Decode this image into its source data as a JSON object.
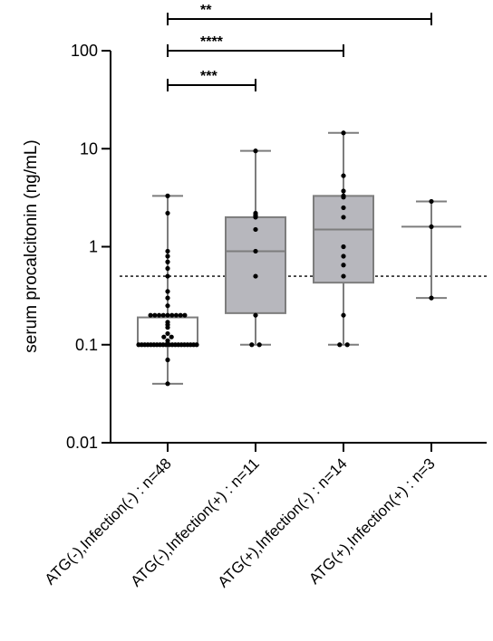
{
  "chart_data": {
    "type": "box",
    "ylabel": "serum procalcitonin (ng/mL)",
    "yscale": "log",
    "ylim": [
      0.01,
      100
    ],
    "yticks": [
      {
        "value": 0.01,
        "label": "0.01"
      },
      {
        "value": 0.1,
        "label": "0.1"
      },
      {
        "value": 1,
        "label": "1"
      },
      {
        "value": 10,
        "label": "10"
      },
      {
        "value": 100,
        "label": "100"
      }
    ],
    "reference_line": 0.5,
    "categories": [
      "ATG(-),Infection(-) : n=48",
      "ATG(-),Infection(+) : n=11",
      "ATG(+),Infection(-) : n=14",
      "ATG(+),Infection(+) : n=3"
    ],
    "boxes": [
      {
        "min": 0.04,
        "q1": 0.1,
        "median": 0.1,
        "q3": 0.19,
        "max": 3.3,
        "fill": "#ffffff"
      },
      {
        "min": 0.1,
        "q1": 0.21,
        "median": 0.9,
        "q3": 2.0,
        "max": 9.5,
        "fill": "#b7b7bd"
      },
      {
        "min": 0.1,
        "q1": 0.43,
        "median": 1.5,
        "q3": 3.3,
        "max": 14.5,
        "fill": "#b7b7bd"
      },
      {
        "min": 0.3,
        "median": 1.6,
        "max": 2.9,
        "fill": "#ffffff"
      }
    ],
    "points": [
      [
        0.04,
        0.07,
        0.1,
        0.1,
        0.1,
        0.1,
        0.1,
        0.1,
        0.1,
        0.1,
        0.1,
        0.1,
        0.1,
        0.1,
        0.1,
        0.1,
        0.1,
        0.1,
        0.1,
        0.1,
        0.1,
        0.1,
        0.11,
        0.12,
        0.12,
        0.13,
        0.15,
        0.16,
        0.17,
        0.2,
        0.2,
        0.2,
        0.2,
        0.2,
        0.2,
        0.2,
        0.2,
        0.2,
        0.25,
        0.3,
        0.35,
        0.5,
        0.6,
        0.7,
        0.8,
        0.9,
        2.2,
        3.3
      ],
      [
        0.1,
        0.1,
        0.2,
        0.5,
        0.9,
        1.5,
        2.0,
        2.1,
        2.2,
        9.5,
        2.05
      ],
      [
        0.1,
        0.1,
        0.2,
        0.5,
        0.65,
        0.8,
        1.0,
        2.0,
        2.5,
        3.3,
        3.7,
        5.3,
        14.5,
        3.2
      ],
      [
        0.3,
        1.6,
        2.9
      ]
    ],
    "significance": [
      {
        "from": 0,
        "to": 3,
        "label": "**"
      },
      {
        "from": 0,
        "to": 2,
        "label": "****"
      },
      {
        "from": 0,
        "to": 1,
        "label": "***"
      }
    ]
  }
}
